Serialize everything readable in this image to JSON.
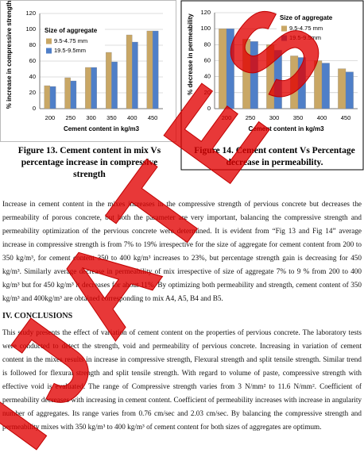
{
  "chart_data": [
    {
      "type": "bar",
      "ylabel": "% increase in compressive strength",
      "xlabel": "Cement content in kg/m3",
      "legend_title": "Size of aggregate",
      "categories": [
        "200",
        "250",
        "300",
        "350",
        "400",
        "450"
      ],
      "series": [
        {
          "name": "9.5-4.75 mm",
          "color": "#c9a765",
          "values": [
            29,
            39,
            52,
            71,
            93,
            98
          ]
        },
        {
          "name": "19.5-9.5mm",
          "color": "#4f7fc8",
          "values": [
            28,
            35,
            52,
            59,
            84,
            98
          ]
        }
      ],
      "ylim": [
        0,
        120
      ],
      "yticks": [
        0,
        20,
        40,
        60,
        80,
        100,
        120
      ]
    },
    {
      "type": "bar",
      "ylabel": "% decrease in permeability",
      "xlabel": "Cement content in kg/m3",
      "legend_title": "Size of aggregate",
      "categories": [
        "200",
        "250",
        "300",
        "350",
        "400",
        "450"
      ],
      "series": [
        {
          "name": "9.5-4.75 mm",
          "color": "#c9a765",
          "values": [
            100,
            87,
            80,
            66,
            60,
            50
          ]
        },
        {
          "name": "19.5-9.5mm",
          "color": "#4f7fc8",
          "values": [
            100,
            84,
            73,
            64,
            57,
            46
          ]
        }
      ],
      "ylim": [
        0,
        120
      ],
      "yticks": [
        0,
        20,
        40,
        60,
        80,
        100,
        120
      ]
    }
  ],
  "document": {
    "captions": [
      "Figure 13. Cement content in mix Vs percentage increase in compressive strength",
      "Figure 14. Cement content Vs Percentage decrease in permeability."
    ],
    "paragraph": "Increase in cement content in the mixes increases in the compressive strength of pervious concrete but decreases the permeability of porous concrete, but both the parameter are very important, balancing the compressive strength and permeability optimization of the pervious concrete were determined. It is evident from “Fig 13 and Fig 14” average increase in compressive strength is from 7% to 19% irrespective for the size of aggregate for cement content from 200 to 350 kg/m³, for cement content 350 to 400 kg/m³ increases to 23%, but percentage strength gain is decreasing for 450 kg/m³. Similarly average decrease in permeability of mix irrespective of size of aggregate 7% to 9 % from 200 to 400 kg/m³ but for 450 kg/m³ it decreases for about 11%. By optimizing both permeability and strength, cement content of 350 kg/m³ and 400kg/m³ are obtained corresponding to mix A4, A5, B4 and B5.",
    "heading": "IV. CONCLUSIONS",
    "conclusion": "This study presents the effect of variation of cement content on the properties of pervious concrete. The laboratory tests were conducted to detect the strength, void and permeability of pervious concrete. Increasing in variation of cement content in the mixes results in increase in compressive strength, Flexural strength and split tensile strength. Similar trend is followed for flexural strength and split tensile strength. With regard to volume of paste, compressive strength with effective void is evaluated. The range of Compressive strength varies from 3 N/mm² to 11.6 N/mm². Coefficient of permeability decreases with increasing in cement content. Coefficient of permeability increases with increase in angularity number of aggregates. Its range varies from 0.76 cm/sec and 2.03 cm/sec. By balancing the compressive strength and permeability mixes with 350 kg/m³ to 400 kg/m³ of cement content for both sizes of aggregates are optimum.",
    "watermark": "IJATES"
  }
}
